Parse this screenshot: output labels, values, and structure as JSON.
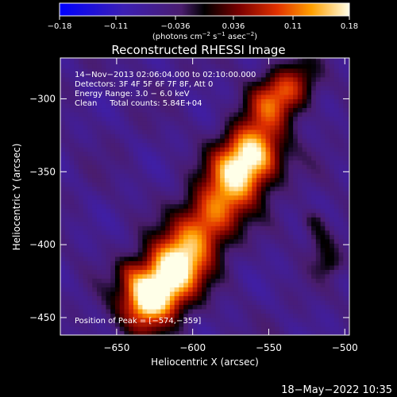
{
  "chart_data": {
    "type": "heatmap",
    "title": "Reconstructed RHESSI Image",
    "xlabel": "Heliocentric X (arcsec)",
    "ylabel": "Heliocentric Y (arcsec)",
    "xlim": [
      -687,
      -497
    ],
    "ylim": [
      -462,
      -272
    ],
    "xticks": [
      -650,
      -600,
      -550,
      -500
    ],
    "xtick_labels": [
      "−650",
      "−600",
      "−550",
      "−500"
    ],
    "yticks": [
      -300,
      -350,
      -400,
      -450
    ],
    "ytick_labels": [
      "−300",
      "−350",
      "−400",
      "−450"
    ],
    "colorbar": {
      "min": -0.18,
      "max": 0.18,
      "ticks": [
        -0.18,
        -0.11,
        -0.036,
        0.036,
        0.11,
        0.18
      ],
      "tick_labels": [
        "−0.18",
        "−0.11",
        "−0.036",
        "0.036",
        "0.11",
        "0.18"
      ],
      "unit_label_parts": [
        "(photons cm",
        "−2",
        " s",
        "−1",
        " asec",
        "−2",
        ")"
      ]
    },
    "annotations": [
      "14−Nov−2013 02:06:04.000 to 02:10:00.000",
      "Detectors: 3F 4F 5F 6F 7F 8F, Att 0",
      "Energy Range: 3.0 − 6.0 keV",
      "Clean     Total counts: 5.84E+04"
    ],
    "peak_label": "Position of Peak = [−574,−359]",
    "peak": [
      -574,
      -359
    ],
    "sources": [
      {
        "x0": -624,
        "y0": -430,
        "x1": -560,
        "y1": -342,
        "width": 13,
        "amp": 0.18
      },
      {
        "x0": -572,
        "y0": -344,
        "x1": -540,
        "y1": -298,
        "width": 12,
        "amp": 0.1
      },
      {
        "x0": -632,
        "y0": -445,
        "x1": -612,
        "y1": -420,
        "width": 14,
        "amp": 0.11
      },
      {
        "x0": -520,
        "y0": -385,
        "x1": -510,
        "y1": -412,
        "width": 6,
        "amp": 0.06
      },
      {
        "x0": -642,
        "y0": -418,
        "x1": -630,
        "y1": -440,
        "width": 6,
        "amp": 0.05
      },
      {
        "x0": -550,
        "y0": -300,
        "x1": -530,
        "y1": -285,
        "width": 10,
        "amp": 0.06
      }
    ],
    "grid": false
  },
  "footer": {
    "date": "18−May−2022 10:35"
  }
}
